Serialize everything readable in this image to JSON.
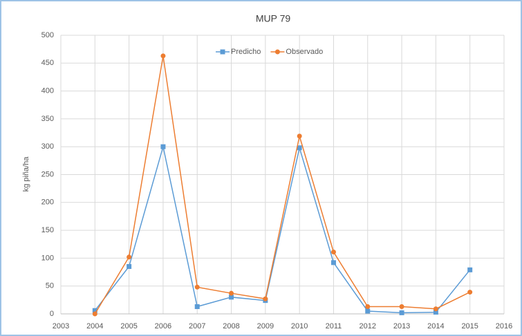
{
  "chart_data": {
    "type": "line",
    "title": "MUP 79",
    "y_label": "kg piña/ha",
    "x": [
      2004,
      2005,
      2006,
      2007,
      2008,
      2009,
      2010,
      2011,
      2012,
      2013,
      2014,
      2015
    ],
    "series": [
      {
        "name": "Predicho",
        "color": "#5b9bd5",
        "marker": "square",
        "values": [
          6,
          85,
          300,
          13,
          30,
          24,
          298,
          92,
          5,
          2,
          3,
          79
        ]
      },
      {
        "name": "Observado",
        "color": "#ed7d31",
        "marker": "circle",
        "values": [
          0,
          102,
          463,
          48,
          37,
          27,
          319,
          111,
          13,
          13,
          9,
          39
        ]
      }
    ],
    "xlim": [
      2003,
      2016
    ],
    "xticks": [
      2003,
      2004,
      2005,
      2006,
      2007,
      2008,
      2009,
      2010,
      2011,
      2012,
      2013,
      2014,
      2015,
      2016
    ],
    "ylim": [
      0,
      500
    ],
    "yticks": [
      0,
      50,
      100,
      150,
      200,
      250,
      300,
      350,
      400,
      450,
      500
    ],
    "grid": true,
    "legend": "top"
  }
}
